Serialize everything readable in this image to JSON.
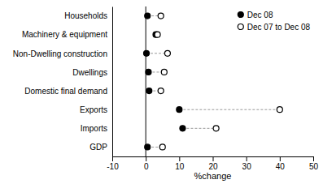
{
  "chart_data": {
    "type": "dot",
    "orientation": "horizontal",
    "categories": [
      "Households",
      "Machinery & equipment",
      "Non-Dwelling construction",
      "Dwellings",
      "Domestic final demand",
      "Exports",
      "Imports",
      "GDP"
    ],
    "series": [
      {
        "name": "Dec 08",
        "color": "#000000",
        "marker": "circle",
        "values": [
          0.5,
          3.0,
          0.2,
          0.8,
          1.0,
          10.0,
          11.0,
          0.5
        ]
      },
      {
        "name": "Dec 07 to Dec 08",
        "color": "#ffffff",
        "marker": "circle",
        "values": [
          4.5,
          3.5,
          6.5,
          5.5,
          4.5,
          40.0,
          21.0,
          5.0
        ]
      }
    ],
    "xlim": [
      -10,
      50
    ],
    "xticks": [
      -10,
      0,
      10,
      20,
      30,
      40,
      50
    ],
    "xlabel": "%change",
    "legend": "upper right"
  }
}
